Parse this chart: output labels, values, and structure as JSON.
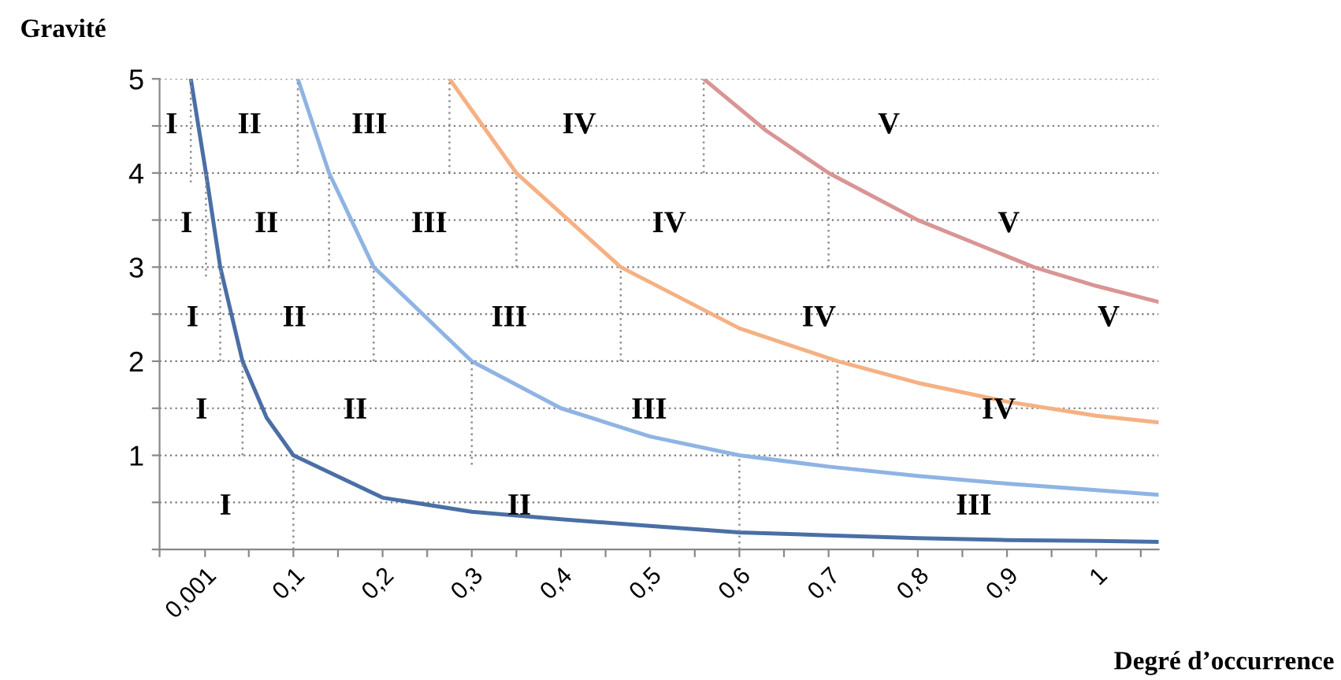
{
  "chart_data": {
    "type": "line",
    "xlabel": "Degré d’occurrence",
    "ylabel": "Gravité",
    "xlim": [
      -0.05,
      1.07
    ],
    "ylim": [
      0,
      5
    ],
    "xticks": [
      {
        "value": -0.05,
        "label": null
      },
      {
        "value": 0.001,
        "label": "0,001"
      },
      {
        "value": 0.05,
        "label": null
      },
      {
        "value": 0.1,
        "label": "0,1"
      },
      {
        "value": 0.15,
        "label": null
      },
      {
        "value": 0.2,
        "label": "0,2"
      },
      {
        "value": 0.25,
        "label": null
      },
      {
        "value": 0.3,
        "label": "0,3"
      },
      {
        "value": 0.35,
        "label": null
      },
      {
        "value": 0.4,
        "label": "0,4"
      },
      {
        "value": 0.45,
        "label": null
      },
      {
        "value": 0.5,
        "label": "0,5"
      },
      {
        "value": 0.55,
        "label": null
      },
      {
        "value": 0.6,
        "label": "0,6"
      },
      {
        "value": 0.65,
        "label": null
      },
      {
        "value": 0.7,
        "label": "0,7"
      },
      {
        "value": 0.75,
        "label": null
      },
      {
        "value": 0.8,
        "label": "0,8"
      },
      {
        "value": 0.85,
        "label": null
      },
      {
        "value": 0.9,
        "label": "0,9"
      },
      {
        "value": 0.95,
        "label": null
      },
      {
        "value": 1,
        "label": "1"
      },
      {
        "value": 1.05,
        "label": null
      }
    ],
    "yticks": [
      {
        "value": 0,
        "label": null
      },
      {
        "value": 0.5,
        "label": null
      },
      1,
      {
        "value": 1.5,
        "label": null
      },
      2,
      {
        "value": 2.5,
        "label": null
      },
      3,
      {
        "value": 3.5,
        "label": null
      },
      4,
      {
        "value": 4.5,
        "label": null
      },
      5
    ],
    "grid": "y",
    "legend": false,
    "marker": "none",
    "line_style": "solid",
    "series": [
      {
        "color": "#4a6fa5",
        "x": [
          -0.015,
          0.002,
          0.018,
          0.043,
          0.07,
          0.1,
          0.2,
          0.3,
          0.4,
          0.5,
          0.6,
          0.7,
          0.8,
          0.9,
          1.0,
          1.07
        ],
        "values": [
          5,
          4,
          3,
          2,
          1.4,
          1,
          0.55,
          0.4,
          0.32,
          0.25,
          0.18,
          0.15,
          0.12,
          0.1,
          0.09,
          0.08
        ],
        "errors": [
          [
            3.9,
            5
          ],
          [
            2.9,
            4
          ],
          [
            2,
            3
          ],
          [
            1,
            2
          ],
          null,
          [
            0,
            1
          ],
          null,
          null,
          null,
          null,
          null,
          null,
          null,
          null,
          null,
          null
        ]
      },
      {
        "color": "#8fb4e3",
        "x": [
          0.105,
          0.14,
          0.19,
          0.3,
          0.4,
          0.5,
          0.6,
          0.7,
          0.8,
          0.9,
          1.0,
          1.07
        ],
        "values": [
          5,
          4,
          3,
          2,
          1.5,
          1.2,
          1,
          0.88,
          0.78,
          0.7,
          0.63,
          0.58
        ],
        "errors": [
          [
            4,
            5
          ],
          [
            3,
            4
          ],
          [
            2,
            3
          ],
          [
            0.9,
            2
          ],
          null,
          null,
          [
            0,
            1
          ],
          null,
          null,
          null,
          null,
          null
        ]
      },
      {
        "color": "#f5b183",
        "x": [
          0.275,
          0.35,
          0.467,
          0.6,
          0.71,
          0.8,
          0.9,
          1.0,
          1.07
        ],
        "values": [
          5,
          4,
          3,
          2.35,
          2,
          1.77,
          1.57,
          1.42,
          1.35
        ],
        "errors": [
          [
            4,
            5
          ],
          [
            3,
            4
          ],
          [
            2,
            3
          ],
          null,
          [
            1,
            2
          ],
          null,
          null,
          null,
          null
        ]
      },
      {
        "color": "#d99594",
        "x": [
          0.56,
          0.63,
          0.7,
          0.8,
          0.93,
          1.0,
          1.07
        ],
        "values": [
          5,
          4.45,
          4,
          3.5,
          3,
          2.8,
          2.63
        ],
        "errors": [
          [
            4,
            5
          ],
          null,
          [
            3,
            4
          ],
          null,
          [
            2,
            3
          ],
          null,
          null
        ]
      }
    ],
    "annotations": [
      "I",
      "II",
      "III",
      "IV",
      "V",
      "I",
      "II",
      "III",
      "IV",
      "V",
      "I",
      "II",
      "III",
      "IV",
      "V",
      "I",
      "II",
      "III",
      "IV",
      "I",
      "II",
      "III"
    ]
  }
}
